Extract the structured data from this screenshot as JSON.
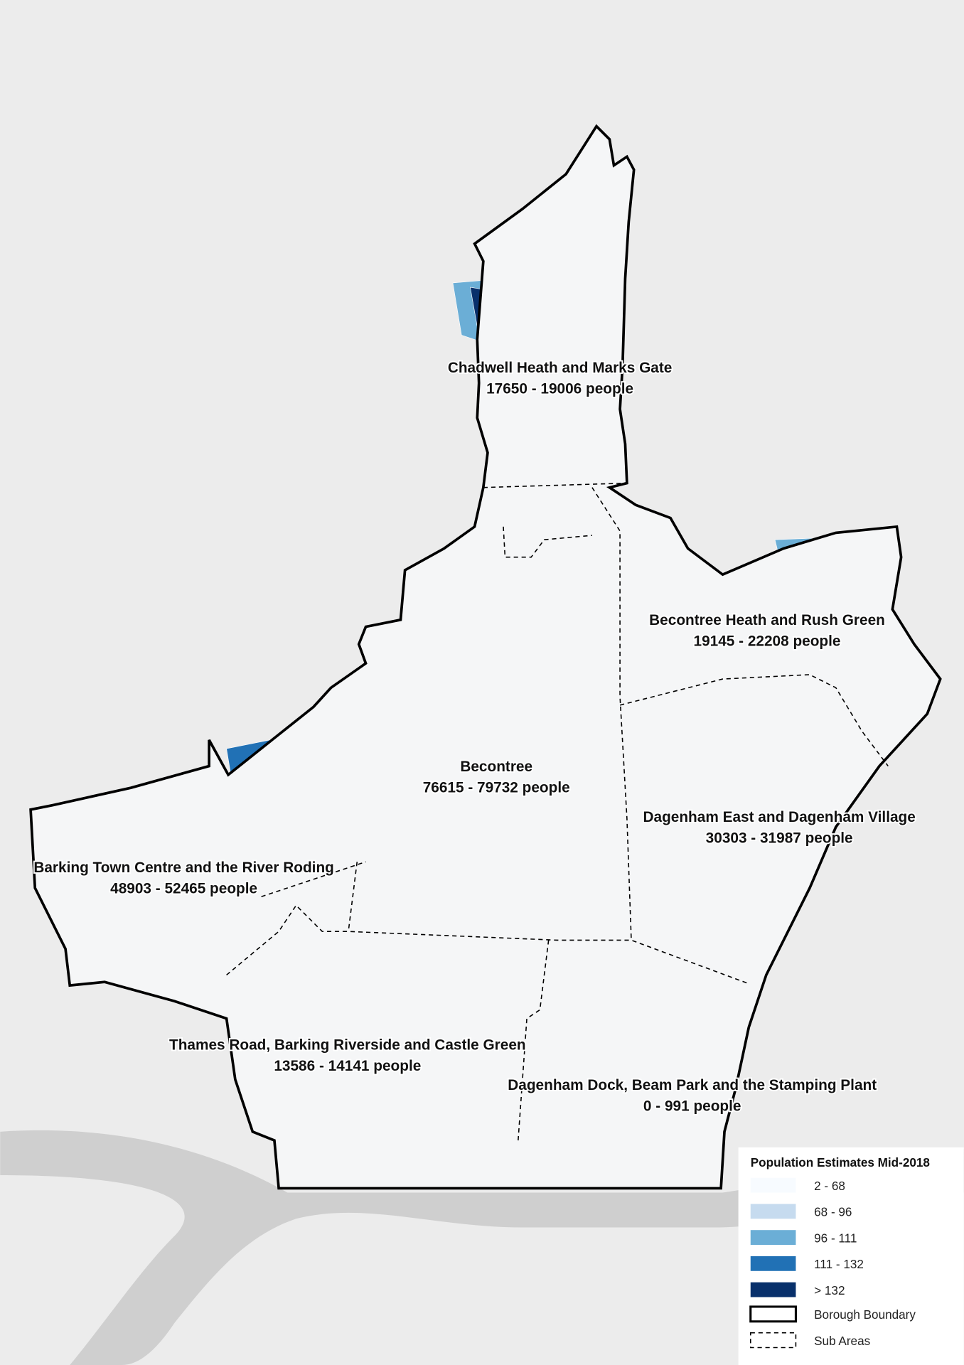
{
  "map": {
    "areas": [
      {
        "name": "Chadwell Heath and Marks Gate",
        "population": "17650 - 19006 people"
      },
      {
        "name": "Becontree Heath and Rush Green",
        "population": "19145 - 22208 people"
      },
      {
        "name": "Becontree",
        "population": "76615 - 79732 people"
      },
      {
        "name": "Dagenham East and Dagenham Village",
        "population": "30303 - 31987 people"
      },
      {
        "name": "Barking Town Centre and the River Roding",
        "population": "48903 - 52465 people"
      },
      {
        "name": "Thames Road, Barking Riverside and Castle Green",
        "population": "13586 - 14141 people"
      },
      {
        "name": "Dagenham Dock, Beam Park and the Stamping Plant",
        "population": "0 - 991 people"
      }
    ],
    "legend": {
      "title": "Population Estimates Mid-2018",
      "classes": [
        {
          "label": "2 - 68",
          "color": "#f7fbff"
        },
        {
          "label": "68 - 96",
          "color": "#c6dbef"
        },
        {
          "label": "96 - 111",
          "color": "#6baed6"
        },
        {
          "label": "111 - 132",
          "color": "#2171b5"
        },
        {
          "label": "> 132",
          "color": "#08306b"
        }
      ],
      "boundary": "Borough Boundary",
      "sub_areas": "Sub Areas"
    }
  }
}
